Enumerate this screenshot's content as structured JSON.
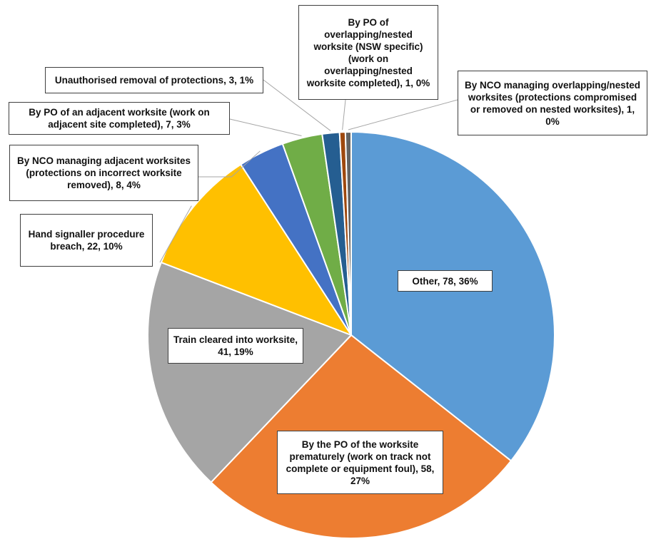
{
  "chart_data": {
    "type": "pie",
    "title": "",
    "start_angle_deg": 0,
    "direction": "clockwise",
    "slices": [
      {
        "label": "Other, 78, 36%",
        "value": 78,
        "percent": 36,
        "color": "#5b9bd5"
      },
      {
        "label": "By the PO of the worksite prematurely (work on track not complete or equipment foul), 58, 27%",
        "value": 58,
        "percent": 27,
        "color": "#ed7d31"
      },
      {
        "label": "Train cleared into worksite, 41, 19%",
        "value": 41,
        "percent": 19,
        "color": "#a5a5a5"
      },
      {
        "label": "Hand signaller procedure breach, 22, 10%",
        "value": 22,
        "percent": 10,
        "color": "#ffc000"
      },
      {
        "label": "By NCO managing adjacent worksites (protections on incorrect worksite removed), 8, 4%",
        "value": 8,
        "percent": 4,
        "color": "#4472c4"
      },
      {
        "label": "By PO of an adjacent worksite (work on adjacent site completed), 7, 3%",
        "value": 7,
        "percent": 3,
        "color": "#70ad47"
      },
      {
        "label": "Unauthorised removal of protections, 3, 1%",
        "value": 3,
        "percent": 1,
        "color": "#255e91"
      },
      {
        "label": "By PO of overlapping/nested worksite (NSW specific) (work on overlapping/nested worksite completed), 1, 0%",
        "value": 1,
        "percent": 0,
        "color": "#9e480e"
      },
      {
        "label": "By NCO managing overlapping/nested worksites (protections compromised or removed on nested worksites), 1, 0%",
        "value": 1,
        "percent": 0,
        "color": "#636363"
      }
    ]
  }
}
